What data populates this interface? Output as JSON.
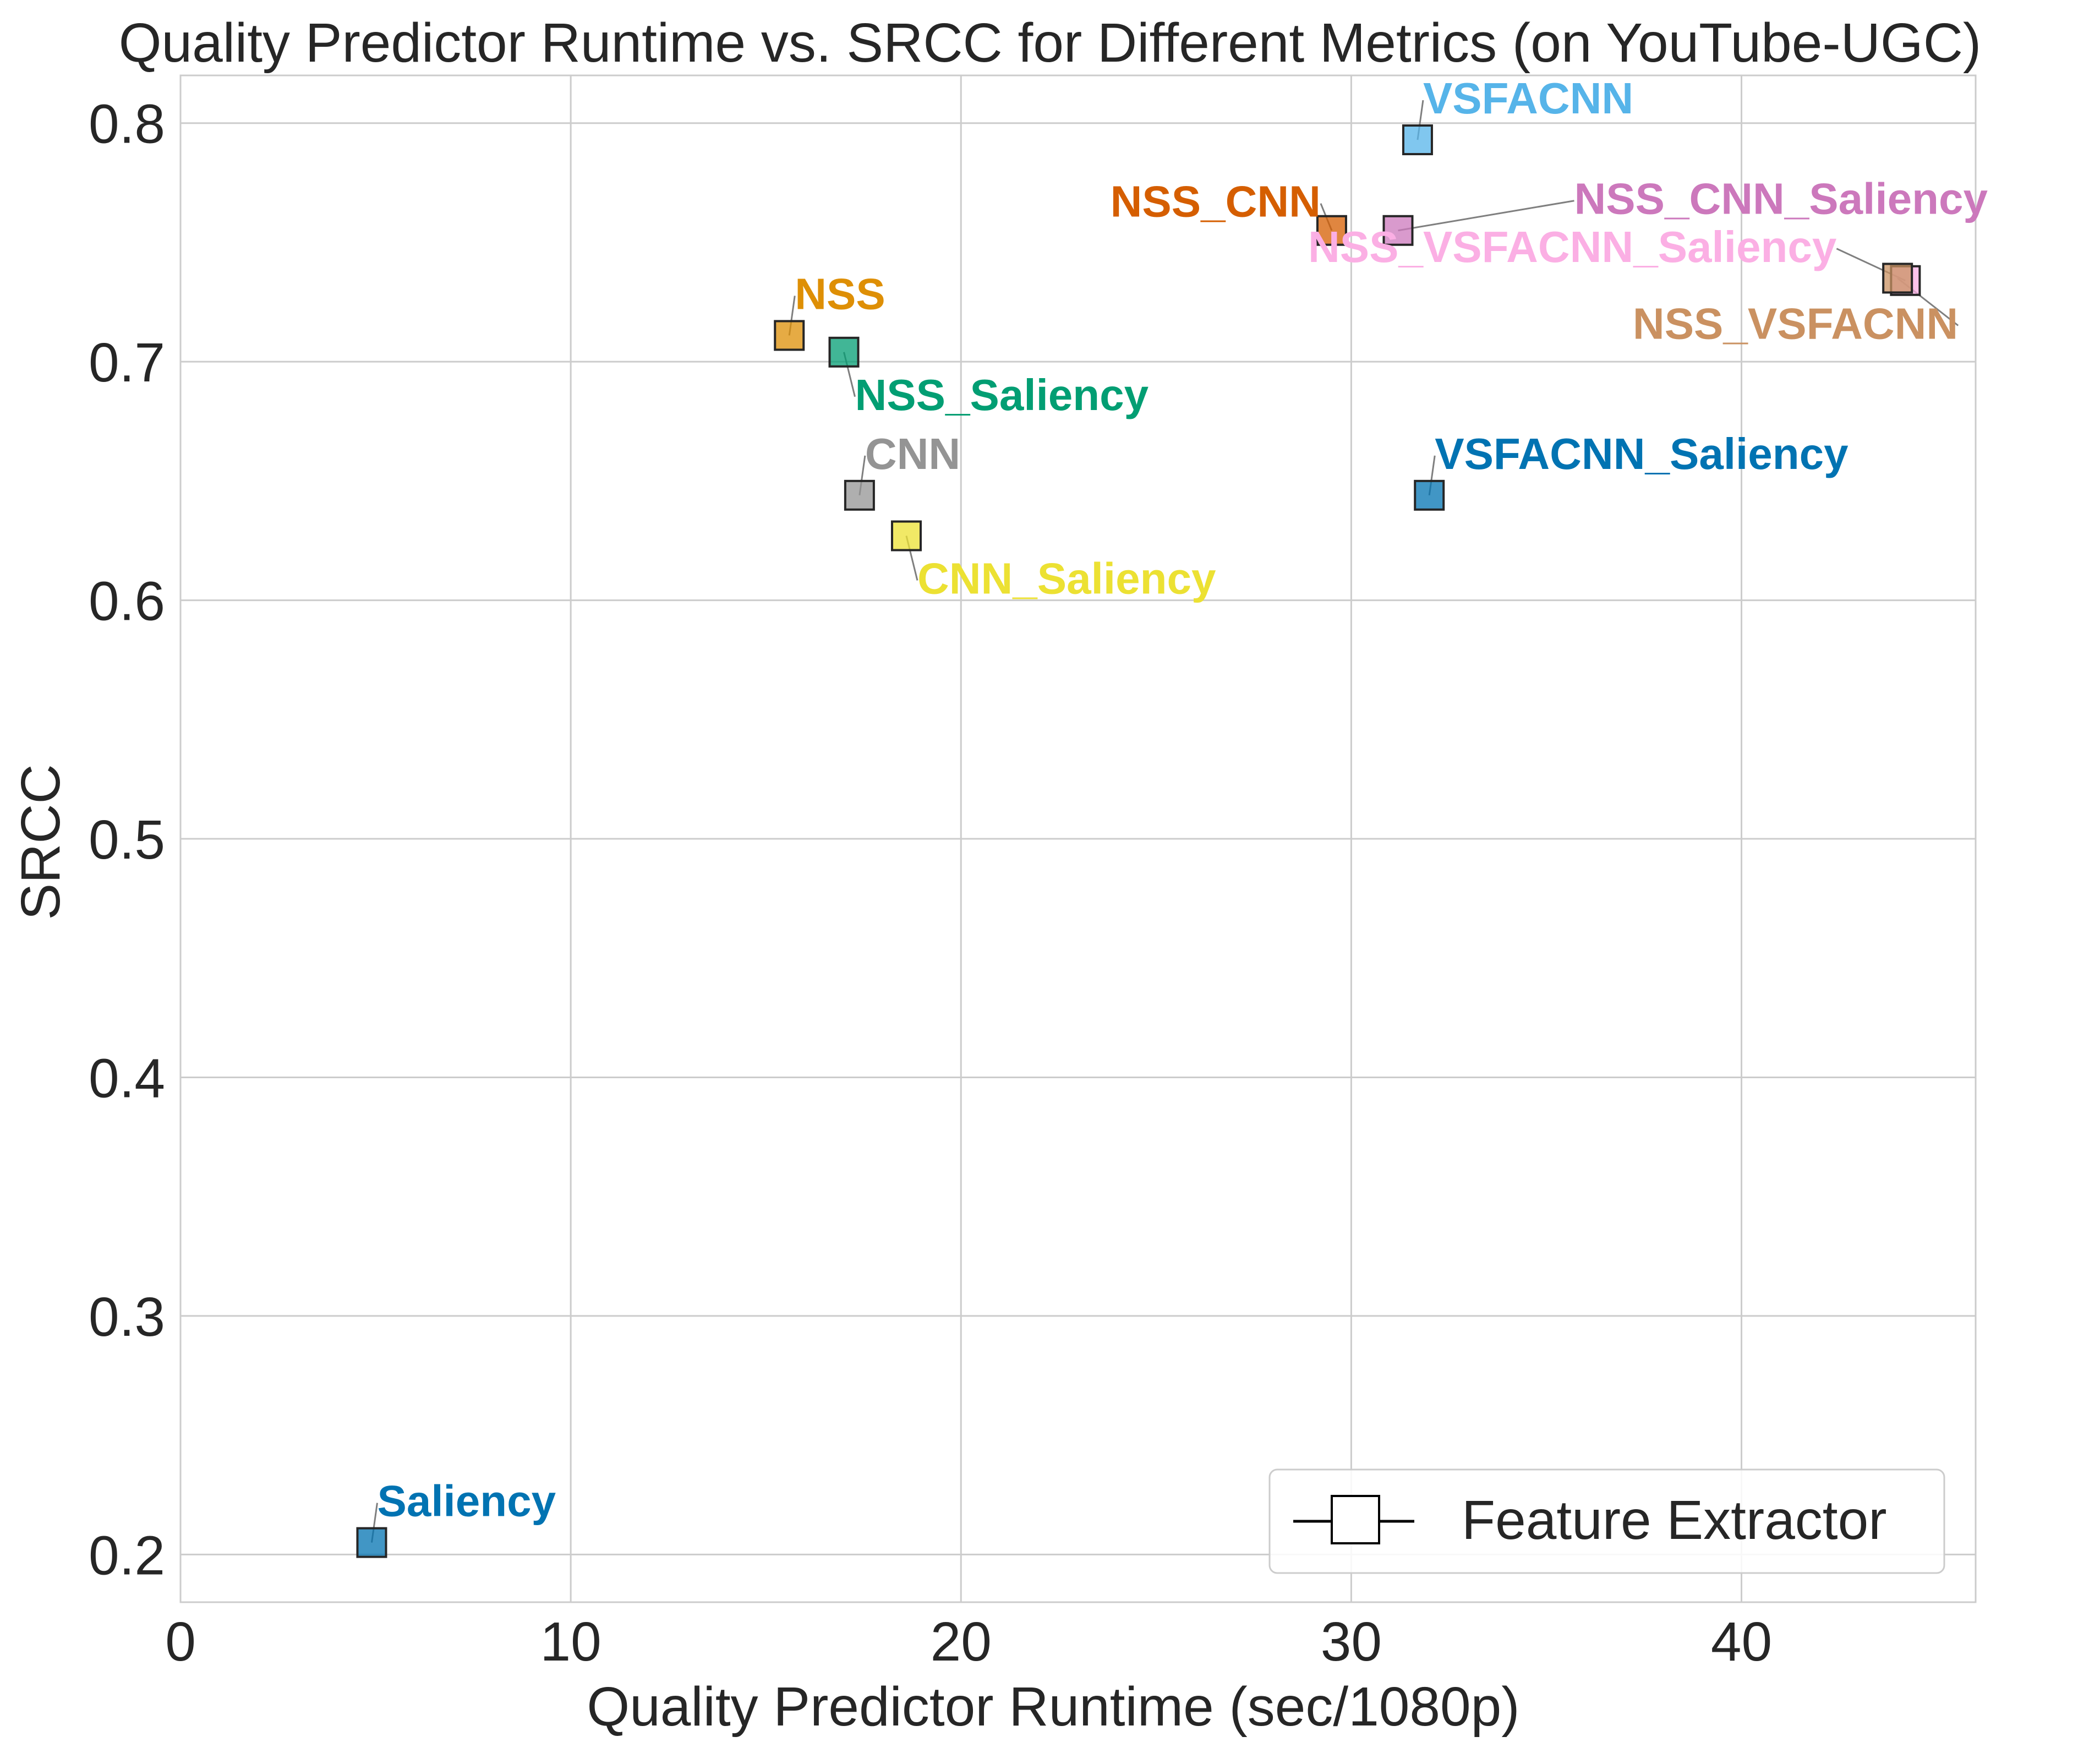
{
  "chart_data": {
    "type": "scatter",
    "title": "Quality Predictor Runtime vs. SRCC for Different Metrics (on YouTube-UGC)",
    "xlabel": "Quality Predictor Runtime (sec/1080p)",
    "ylabel": "SRCC",
    "xlim": [
      0,
      46
    ],
    "ylim": [
      0.18,
      0.82
    ],
    "xticks": [
      0,
      10,
      20,
      30,
      40
    ],
    "yticks": [
      0.2,
      0.3,
      0.4,
      0.5,
      0.6,
      0.7,
      0.8
    ],
    "grid": true,
    "legend": {
      "placement": "lower-right",
      "entries": [
        "Feature Extractor"
      ]
    },
    "points": [
      {
        "label": "Saliency",
        "x": 4.9,
        "y": 0.205,
        "color": "#0173b2",
        "label_color": "#0173b2",
        "label_pos": "above-right"
      },
      {
        "label": "NSS",
        "x": 15.6,
        "y": 0.711,
        "color": "#de8f05",
        "label_color": "#de8f05",
        "label_pos": "above-right"
      },
      {
        "label": "NSS_Saliency",
        "x": 17.0,
        "y": 0.704,
        "color": "#029e73",
        "label_color": "#029e73",
        "label_pos": "below-right"
      },
      {
        "label": "CNN",
        "x": 17.4,
        "y": 0.644,
        "color": "#949494",
        "label_color": "#949494",
        "label_pos": "above-right"
      },
      {
        "label": "CNN_Saliency",
        "x": 18.6,
        "y": 0.627,
        "color": "#ece133",
        "label_color": "#ece133",
        "label_pos": "below-right"
      },
      {
        "label": "NSS_CNN",
        "x": 29.5,
        "y": 0.755,
        "color": "#d55e00",
        "label_color": "#d55e00",
        "label_pos": "above-left"
      },
      {
        "label": "NSS_CNN_Saliency",
        "x": 31.2,
        "y": 0.755,
        "color": "#cc78bc",
        "label_color": "#cc78bc",
        "label_pos": "far-right"
      },
      {
        "label": "VSFACNN",
        "x": 31.7,
        "y": 0.793,
        "color": "#56b4e9",
        "label_color": "#56b4e9",
        "label_pos": "above-right"
      },
      {
        "label": "VSFACNN_Saliency",
        "x": 32.0,
        "y": 0.644,
        "color": "#0173b2",
        "label_color": "#0173b2",
        "label_pos": "above-right"
      },
      {
        "label": "NSS_VSFACNN_Saliency",
        "x": 44.2,
        "y": 0.734,
        "color": "#fbafe4",
        "label_color": "#fbafe4",
        "label_pos": "far-left"
      },
      {
        "label": "NSS_VSFACNN",
        "x": 44.0,
        "y": 0.735,
        "color": "#ca9161",
        "label_color": "#ca9161",
        "label_pos": "below-left"
      }
    ]
  }
}
